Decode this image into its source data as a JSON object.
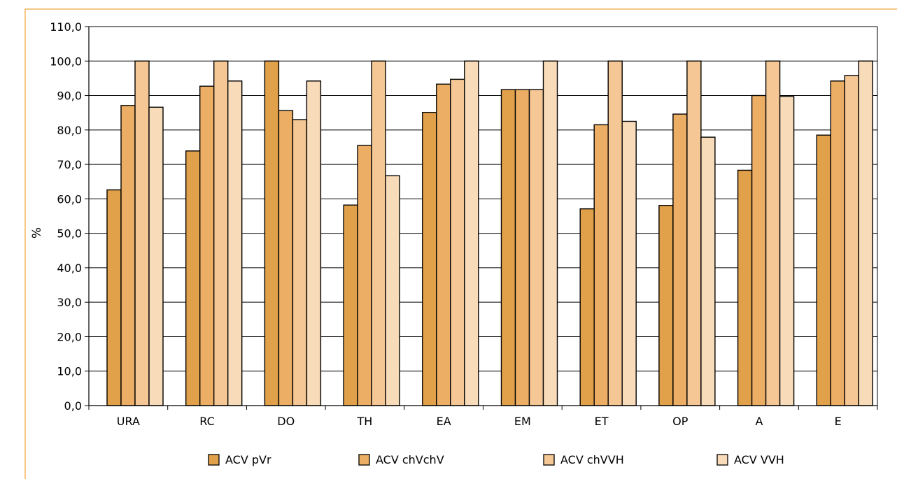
{
  "colors": {
    "frame": "#f2b45e",
    "axis": "#000000",
    "grid": "#000000",
    "series": [
      "#e1a04a",
      "#ebae64",
      "#f4c795",
      "#f8dcba"
    ]
  },
  "chart_data": {
    "type": "bar",
    "title": "",
    "xlabel": "",
    "ylabel": "%",
    "ylim": [
      0,
      110
    ],
    "ytick_step": 10,
    "ytick_labels": [
      "0,0",
      "10,0",
      "20,0",
      "30,0",
      "40,0",
      "50,0",
      "60,0",
      "70,0",
      "80,0",
      "90,0",
      "100,0",
      "110,0"
    ],
    "grid": true,
    "legend_position": "bottom",
    "categories": [
      "URA",
      "RC",
      "DO",
      "TH",
      "EA",
      "EM",
      "ET",
      "OP",
      "A",
      "E"
    ],
    "series": [
      {
        "name": "ACV pVr",
        "values": [
          62.6,
          73.9,
          100.0,
          58.2,
          85.1,
          91.7,
          57.1,
          58.1,
          68.3,
          78.5
        ]
      },
      {
        "name": "ACV chVchV",
        "values": [
          87.1,
          92.7,
          85.6,
          75.5,
          93.3,
          91.7,
          81.5,
          84.6,
          90.0,
          94.2
        ]
      },
      {
        "name": "ACV chVVH",
        "values": [
          100.0,
          100.0,
          83.0,
          100.0,
          94.7,
          91.7,
          100.0,
          100.0,
          100.0,
          95.8
        ]
      },
      {
        "name": "ACV VVH",
        "values": [
          86.6,
          94.2,
          94.2,
          66.7,
          100.0,
          100.0,
          82.5,
          77.9,
          89.7,
          100.0
        ]
      }
    ]
  }
}
